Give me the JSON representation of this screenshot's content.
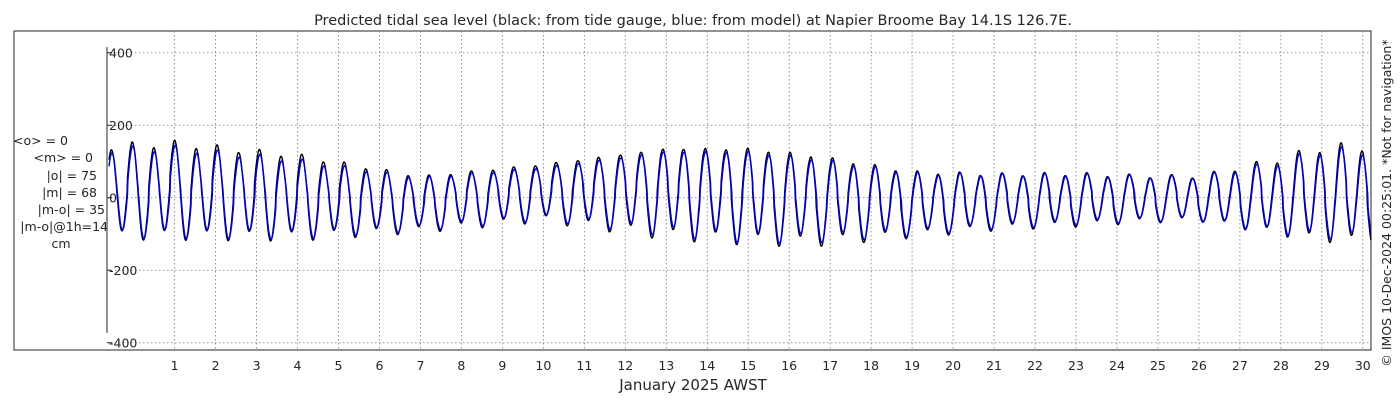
{
  "chart_data": {
    "type": "line",
    "title": "Predicted tidal sea level (black: from tide gauge, blue: from model) at Napier Broome Bay 14.1S 126.7E.",
    "xlabel": "January 2025 AWST",
    "ylabel": "",
    "ylim": [
      -420,
      460
    ],
    "xlim": [
      -0.65,
      30.2
    ],
    "yticks": [
      400,
      200,
      0,
      -200,
      -400
    ],
    "yticklabels": [
      "400",
      "200",
      "0",
      "-200",
      "-400"
    ],
    "xticks": [
      1,
      2,
      3,
      4,
      5,
      6,
      7,
      8,
      9,
      10,
      11,
      12,
      13,
      14,
      15,
      16,
      17,
      18,
      19,
      20,
      21,
      22,
      23,
      24,
      25,
      26,
      27,
      28,
      29,
      30
    ],
    "xticklabels": [
      "1",
      "2",
      "3",
      "4",
      "5",
      "6",
      "7",
      "8",
      "9",
      "10",
      "11",
      "12",
      "13",
      "14",
      "15",
      "16",
      "17",
      "18",
      "19",
      "20",
      "21",
      "22",
      "23",
      "24",
      "25",
      "26",
      "27",
      "28",
      "29",
      "30"
    ],
    "grid": true,
    "series": [
      {
        "name": "tide gauge",
        "color": "#000000",
        "x": [
          -0.6,
          1.0,
          4.0,
          7.0,
          10.0,
          13.0,
          15.0,
          16.5,
          19.0,
          21.0,
          23.0,
          24.5,
          26.0,
          28.0,
          29.0,
          30.2
        ],
        "hi": [
          165,
          175,
          140,
          75,
          110,
          165,
          165,
          145,
          90,
          80,
          80,
          72,
          70,
          125,
          160,
          165
        ],
        "lo": [
          -125,
          -125,
          -125,
          -100,
          -70,
          -120,
          -135,
          -140,
          -115,
          -95,
          -85,
          -75,
          -70,
          -115,
          -135,
          -140
        ]
      },
      {
        "name": "model",
        "color": "#0000e0",
        "x": [
          -0.6,
          1.0,
          4.0,
          7.0,
          10.0,
          13.0,
          15.0,
          16.5,
          19.0,
          21.0,
          23.0,
          24.5,
          26.0,
          28.0,
          29.0,
          30.2
        ],
        "hi": [
          155,
          160,
          125,
          70,
          100,
          155,
          155,
          135,
          85,
          78,
          76,
          70,
          68,
          115,
          150,
          150
        ],
        "lo": [
          -120,
          -120,
          -120,
          -95,
          -65,
          -110,
          -130,
          -130,
          -110,
          -90,
          -80,
          -72,
          -68,
          -110,
          -125,
          -130
        ]
      }
    ],
    "stats": {
      "mean_obs": "<o> = 0",
      "mean_model": "<m> = 0",
      "abs_obs": "|o| = 75",
      "abs_model": "|m| = 68",
      "abs_diff": "|m-o| = 35",
      "abs_diff_1h": "|m-o|@1h=14",
      "unit": "cm"
    },
    "side_note": "© IMOS 10-Dec-2024 00:25:01. *Not for navigation*"
  }
}
